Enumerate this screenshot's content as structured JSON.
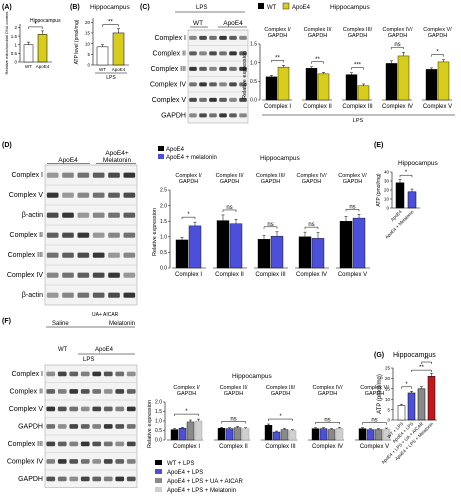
{
  "colors": {
    "black": "#000000",
    "white": "#ffffff",
    "yellow": "#d8cc1c",
    "blue": "#4b4fd9",
    "gray": "#8a8a8a",
    "lightgray": "#cfcfcf",
    "red": "#c0191b",
    "blot_bg": "#f3f3f3",
    "band": "#2b2b2b"
  },
  "panels": {
    "A": {
      "label": "(A)",
      "title": "Hippocampus",
      "ylabel": "Relative mitochondrial DNA content",
      "sig": "*"
    },
    "B": {
      "label": "(B)",
      "title": "Hippocampus",
      "ylabel": "ATP level (pmol/mg)",
      "sig": "**",
      "group": "LPS"
    },
    "C": {
      "label": "(C)",
      "lps_label": "LPS",
      "col_labels": [
        "WT",
        "ApoE4"
      ],
      "blot_rows": [
        "Complex I",
        "Complex II",
        "Complex III",
        "Complex IV",
        "Complex V",
        "GAPDH"
      ],
      "legend": [
        "WT",
        "ApoE4"
      ],
      "legend_title": "Hippocampus",
      "ylabel": "Relative expression",
      "xlabel": "LPS",
      "sub_titles": [
        "Complex I/ GAPDH",
        "Complex II/ GAPDH",
        "Complex III/ GAPDH",
        "Complex IV/ GAPDH",
        "Complex V/ GAPDH"
      ],
      "sigs": [
        "**",
        "**",
        "***",
        "ns",
        "*"
      ]
    },
    "D": {
      "label": "(D)",
      "col_labels": [
        "ApoE4",
        "ApoE4+ Melatonin"
      ],
      "blot_rows": [
        "Complex I",
        "Complex V",
        "β-actin",
        "Complex II",
        "Complex III",
        "Complex IV",
        "β-actin"
      ],
      "legend": [
        "ApoE4",
        "ApoE4 + melatonin"
      ],
      "title": "Hippocampus",
      "ylabel": "Relative expression",
      "sub_titles": [
        "Complex I/ GAPDH",
        "Complex II/ GAPDH",
        "Complex III/ GAPDH",
        "Complex IV/ GAPDH",
        "Complex V/ GAPDH"
      ],
      "sigs": [
        "*",
        "ns",
        "ns",
        "ns",
        "ns"
      ]
    },
    "E": {
      "label": "(E)",
      "title": "Hippocampus",
      "ylabel": "ATP (pmol/mg)",
      "sig": "*"
    },
    "F": {
      "label": "(F)",
      "groups": [
        "Saline",
        "UA+ AICAR",
        "Melatonin"
      ],
      "col_labels": [
        "WT",
        "ApoE4"
      ],
      "lps_label": "LPS",
      "blot_rows": [
        "Complex I",
        "Complex II",
        "Complex V",
        "GAPDH",
        "Complex III",
        "Complex IV",
        "GAPDH"
      ],
      "title": "Hippocampus",
      "ylabel": "Relative expression",
      "sub_titles": [
        "Complex I/ GAPDH",
        "Complex II/ GAPDH",
        "Complex III/ GAPDH",
        "Complex IV/ GAPDH",
        "Complex V/ GAPDH"
      ],
      "sigs": [
        "*",
        "ns",
        "*",
        "ns",
        "ns"
      ],
      "legend": [
        "WT + LPS",
        "ApoE4 + LPS",
        "ApoE4 + LPS + UA + AICAR",
        "ApoE4 + LPS + Melatonin"
      ]
    },
    "G": {
      "label": "(G)",
      "title": "Hippocampus",
      "ylabel": "ATP (pmol/mg)",
      "sigs": [
        "*",
        "**",
        "**"
      ]
    }
  },
  "chart_data": [
    {
      "panel": "A",
      "type": "bar",
      "title": "Hippocampus",
      "categories": [
        "WT",
        "ApoE4"
      ],
      "values": [
        1.0,
        1.6
      ],
      "errors": [
        0.15,
        0.2
      ],
      "ylabel": "Relative mitochondrial DNA content",
      "ylim": [
        0,
        2.2
      ]
    },
    {
      "panel": "B",
      "type": "bar",
      "title": "Hippocampus",
      "categories": [
        "WT",
        "ApoE4"
      ],
      "values": [
        8.5,
        15.0
      ],
      "errors": [
        1.0,
        2.0
      ],
      "ylabel": "ATP level (pmol/mg)",
      "xlabel": "LPS",
      "ylim": [
        0,
        22
      ]
    },
    {
      "panel": "C",
      "type": "bar",
      "categories": [
        "Complex I",
        "Complex II",
        "Complex III",
        "Complex IV",
        "Complex V"
      ],
      "series": [
        {
          "name": "WT",
          "values": [
            0.62,
            0.85,
            0.68,
            0.98,
            0.82
          ],
          "errors": [
            0.04,
            0.04,
            0.05,
            0.07,
            0.04
          ]
        },
        {
          "name": "ApoE4",
          "values": [
            0.88,
            0.7,
            0.38,
            1.18,
            1.02
          ],
          "errors": [
            0.05,
            0.04,
            0.05,
            0.1,
            0.06
          ]
        }
      ],
      "ylabel": "Relative expression",
      "xlabel": "LPS",
      "ylim": [
        0,
        1.5
      ]
    },
    {
      "panel": "D",
      "type": "bar",
      "title": "Hippocampus",
      "categories": [
        "Complex I",
        "Complex II",
        "Complex III",
        "Complex IV",
        "Complex V"
      ],
      "series": [
        {
          "name": "ApoE4",
          "values": [
            0.9,
            1.52,
            0.92,
            1.0,
            1.5
          ],
          "errors": [
            0.08,
            0.18,
            0.12,
            0.15,
            0.15
          ]
        },
        {
          "name": "ApoE4 + melatonin",
          "values": [
            1.35,
            1.42,
            1.02,
            0.95,
            1.6
          ],
          "errors": [
            0.12,
            0.14,
            0.14,
            0.18,
            0.12
          ]
        }
      ],
      "ylabel": "Relative expression",
      "ylim": [
        0,
        2.5
      ]
    },
    {
      "panel": "E",
      "type": "bar",
      "title": "Hippocampus",
      "categories": [
        "ApoE4",
        "ApoE4 + Melatonin"
      ],
      "values": [
        28,
        18
      ],
      "errors": [
        4,
        3
      ],
      "ylabel": "ATP (pmol/mg)",
      "ylim": [
        0,
        40
      ]
    },
    {
      "panel": "F",
      "type": "bar",
      "title": "Hippocampus",
      "categories": [
        "Complex I",
        "Complex II",
        "Complex III",
        "Complex IV",
        "Complex V"
      ],
      "series": [
        {
          "name": "WT + LPS",
          "values": [
            0.55,
            0.62,
            0.78,
            0.6,
            0.6
          ],
          "errors": [
            0.05,
            0.05,
            0.06,
            0.05,
            0.05
          ]
        },
        {
          "name": "ApoE4 + LPS",
          "values": [
            0.62,
            0.6,
            0.42,
            0.6,
            0.55
          ],
          "errors": [
            0.05,
            0.05,
            0.05,
            0.05,
            0.05
          ]
        },
        {
          "name": "ApoE4 + LPS + UA + AICAR",
          "values": [
            0.95,
            0.65,
            0.55,
            0.55,
            0.55
          ],
          "errors": [
            0.1,
            0.06,
            0.06,
            0.05,
            0.05
          ]
        },
        {
          "name": "ApoE4 + LPS + Melatonin",
          "values": [
            1.0,
            0.6,
            0.5,
            0.62,
            0.58
          ],
          "errors": [
            0.1,
            0.05,
            0.05,
            0.05,
            0.05
          ]
        }
      ],
      "ylabel": "Relative expression",
      "ylim": [
        0,
        2.0
      ]
    },
    {
      "panel": "G",
      "type": "bar",
      "title": "Hippocampus",
      "categories": [
        "WT + LPS",
        "ApoE4 + LPS",
        "ApoE4 + LPS + UA + AICAR",
        "ApoE4 + LPS + Melatonin"
      ],
      "values": [
        7,
        13,
        15,
        21
      ],
      "errors": [
        0.6,
        0.8,
        1.0,
        1.5
      ],
      "ylabel": "ATP (pmol/mg)",
      "ylim": [
        0,
        25
      ]
    }
  ]
}
